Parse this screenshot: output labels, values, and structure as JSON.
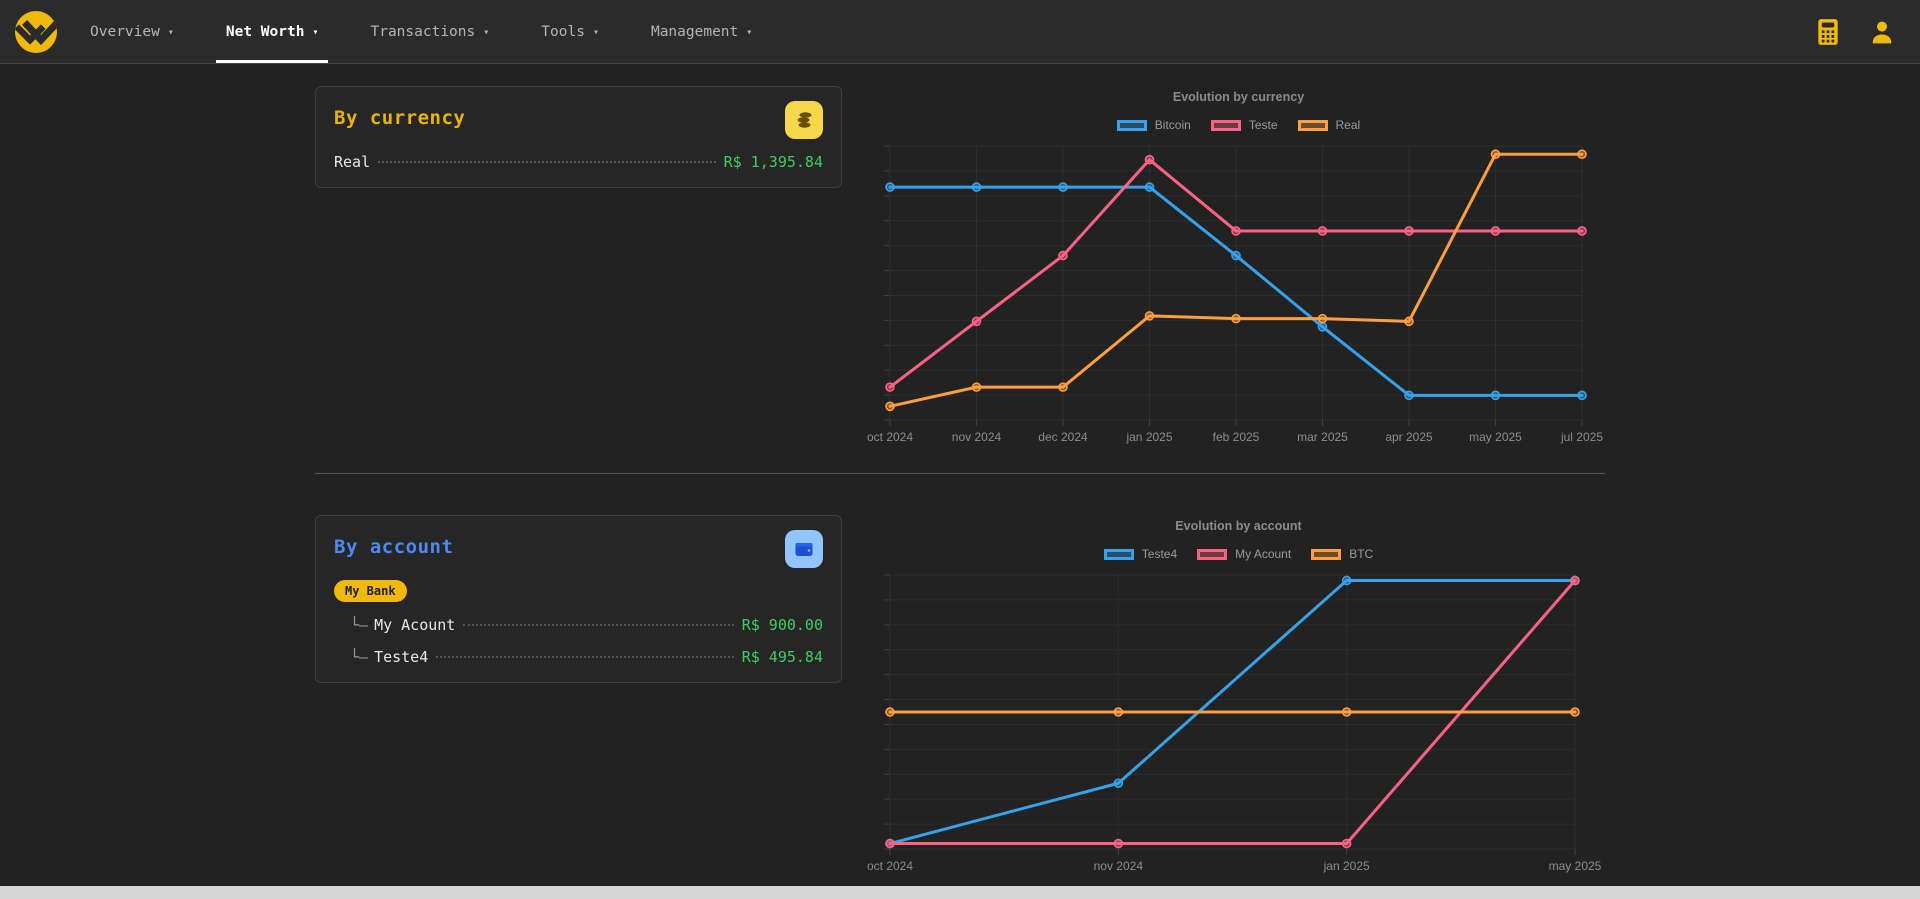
{
  "glyphs": {
    "caret": "▾"
  },
  "colors": {
    "accent_yellow": "#f0b90b",
    "value_green": "#3ecf63",
    "title_yellow": "#eab308",
    "title_blue": "#4b8bf5",
    "chart_blue": "#36a2eb",
    "chart_pink": "#ff6384",
    "chart_orange": "#ff9f40"
  },
  "navbar": {
    "items": [
      {
        "label": "Overview",
        "active": false
      },
      {
        "label": "Net Worth",
        "active": true
      },
      {
        "label": "Transactions",
        "active": false
      },
      {
        "label": "Tools",
        "active": false
      },
      {
        "label": "Management",
        "active": false
      }
    ],
    "icons": [
      "calculator-icon",
      "user-icon"
    ]
  },
  "cards": {
    "by_currency": {
      "title": "By currency",
      "rows": [
        {
          "label": "Real",
          "value": "R$ 1,395.84"
        }
      ]
    },
    "by_account": {
      "title": "By account",
      "group_badge": "My Bank",
      "rows": [
        {
          "prefix": "└–",
          "label": "My Acount",
          "value": "R$ 900.00"
        },
        {
          "prefix": "└–",
          "label": "Teste4",
          "value": "R$ 495.84"
        }
      ]
    }
  },
  "chart_data": [
    {
      "type": "line",
      "title": "Evolution by currency",
      "categories": [
        "oct 2024",
        "nov 2024",
        "dec 2024",
        "jan 2025",
        "feb 2025",
        "mar 2025",
        "apr 2025",
        "may 2025",
        "jul 2025"
      ],
      "series": [
        {
          "name": "Bitcoin",
          "color": "#36a2eb",
          "values": [
            85,
            85,
            85,
            85,
            60,
            34,
            9,
            9,
            9
          ]
        },
        {
          "name": "Teste",
          "color": "#ff6384",
          "values": [
            12,
            36,
            60,
            95,
            69,
            69,
            69,
            69,
            69
          ]
        },
        {
          "name": "Real",
          "color": "#ff9f40",
          "values": [
            5,
            12,
            12,
            38,
            37,
            37,
            36,
            97,
            97
          ]
        }
      ],
      "ylim": [
        0,
        100
      ],
      "y_axis_labels_visible": false,
      "grid": true,
      "legend_position": "top"
    },
    {
      "type": "line",
      "title": "Evolution by account",
      "categories": [
        "oct 2024",
        "nov 2024",
        "jan 2025",
        "may 2025"
      ],
      "series": [
        {
          "name": "Teste4",
          "color": "#36a2eb",
          "values": [
            2,
            24,
            98,
            98
          ]
        },
        {
          "name": "My Acount",
          "color": "#ff6384",
          "values": [
            2,
            2,
            2,
            98
          ]
        },
        {
          "name": "BTC",
          "color": "#ff9f40",
          "values": [
            50,
            50,
            50,
            50
          ]
        }
      ],
      "ylim": [
        0,
        100
      ],
      "y_axis_labels_visible": false,
      "grid": true,
      "legend_position": "top"
    }
  ]
}
